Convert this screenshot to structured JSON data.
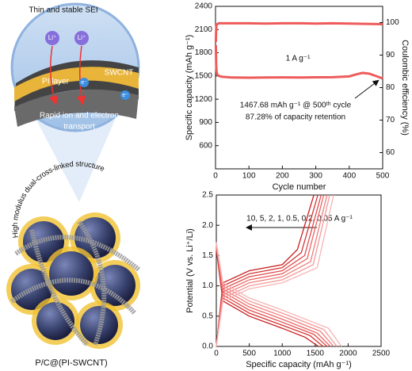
{
  "illustration": {
    "sei_label": "Thin and stable SEI",
    "ion_labels": [
      "Li⁺",
      "Li⁺"
    ],
    "swcnt_label": "SWCNT",
    "pi_label": "PI layer",
    "electron_labels": [
      "e⁻",
      "e⁻"
    ],
    "transport_label": [
      "Rapid ion and electron",
      "transport"
    ],
    "structure_label": "High modulus dual-cross-linked structure",
    "material_label": "P/C@(PI-SWCNT)"
  },
  "chart_data": [
    {
      "type": "line",
      "xlabel": "Cycle number",
      "ylabel": "Specific capacity (mAh g⁻¹)",
      "y2label": "Coulombic efficiency (%)",
      "annotations": [
        "1 A g⁻¹",
        "1467.68 mAh g⁻¹ @ 500ᵗʰ cycle",
        "87.28% of capacity retention"
      ],
      "xlim": [
        0,
        500
      ],
      "xticks": [
        0,
        100,
        200,
        300,
        400,
        500
      ],
      "ylim": [
        300,
        2400
      ],
      "yticks": [
        600,
        900,
        1200,
        1500,
        1800,
        2100,
        2400
      ],
      "y2lim": [
        55,
        105
      ],
      "y2ticks": [
        60,
        70,
        80,
        90,
        100
      ],
      "series": [
        {
          "color": "#ee5b5b",
          "x": [
            1,
            2,
            3,
            5,
            10,
            20,
            50,
            100,
            150,
            200,
            250,
            300,
            350,
            400,
            420,
            440,
            460,
            480,
            500
          ],
          "values": [
            1900,
            1650,
            1560,
            1520,
            1500,
            1490,
            1480,
            1478,
            1480,
            1482,
            1480,
            1483,
            1485,
            1495,
            1520,
            1540,
            1530,
            1500,
            1468
          ]
        },
        {
          "color": "#ee5b5b",
          "axis": "y2",
          "x": [
            1,
            2,
            3,
            5,
            10,
            50,
            100,
            150,
            200,
            250,
            300,
            350,
            400,
            450,
            500
          ],
          "values": [
            94,
            98,
            99.2,
            99.5,
            99.8,
            99.8,
            99.8,
            99.7,
            99.8,
            99.8,
            99.7,
            99.8,
            99.7,
            99.6,
            99.5
          ]
        }
      ]
    },
    {
      "type": "line",
      "xlabel": "Specific capacity (mAh g⁻¹)",
      "ylabel": "Potential (V vs. Li⁺/Li)",
      "annotations": [
        "10, 5, 2, 1, 0.5, 0.2, 0.05 A g⁻¹"
      ],
      "xlim": [
        0,
        2500
      ],
      "xticks": [
        0,
        500,
        1000,
        1500,
        2000,
        2500
      ],
      "ylim": [
        0,
        2.5
      ],
      "yticks": [
        {
          "value": 0,
          "label": "0.0"
        },
        0.5,
        {
          "value": 1,
          "label": "1.0"
        },
        1.5,
        {
          "value": 2,
          "label": "2.0"
        },
        2.5
      ],
      "series": [
        {
          "color": "#c81e1e",
          "x": [
            0,
            100,
            500,
            1000,
            1350,
            1550,
            null,
            0,
            100,
            500,
            1000,
            1230,
            1480
          ],
          "values": [
            1.6,
            0.75,
            0.5,
            0.3,
            0.15,
            0,
            null,
            0,
            1.05,
            1.25,
            1.35,
            1.6,
            2.5
          ]
        },
        {
          "color": "#d53434",
          "x": [
            0,
            100,
            500,
            1000,
            1420,
            1620,
            null,
            0,
            100,
            500,
            1000,
            1290,
            1540
          ],
          "values": [
            1.62,
            0.8,
            0.55,
            0.35,
            0.18,
            0,
            null,
            0,
            1.0,
            1.2,
            1.3,
            1.55,
            2.5
          ]
        },
        {
          "color": "#e04c4c",
          "x": [
            0,
            100,
            500,
            1000,
            1480,
            1680,
            null,
            0,
            100,
            500,
            1000,
            1340,
            1590
          ],
          "values": [
            1.64,
            0.85,
            0.6,
            0.4,
            0.2,
            0,
            null,
            0,
            0.95,
            1.15,
            1.25,
            1.5,
            2.5
          ]
        },
        {
          "color": "#ea6464",
          "x": [
            0,
            100,
            500,
            1000,
            1530,
            1730,
            null,
            0,
            100,
            500,
            1000,
            1380,
            1630
          ],
          "values": [
            1.66,
            0.9,
            0.65,
            0.45,
            0.22,
            0,
            null,
            0,
            0.9,
            1.1,
            1.2,
            1.45,
            2.5
          ]
        },
        {
          "color": "#f07d7d",
          "x": [
            0,
            100,
            500,
            1000,
            1580,
            1780,
            null,
            0,
            100,
            500,
            1000,
            1430,
            1680
          ],
          "values": [
            1.68,
            0.95,
            0.7,
            0.5,
            0.25,
            0,
            null,
            0,
            0.85,
            1.05,
            1.15,
            1.4,
            2.5
          ]
        },
        {
          "color": "#f49797",
          "x": [
            0,
            100,
            500,
            1000,
            1630,
            1830,
            null,
            0,
            100,
            500,
            1000,
            1470,
            1720
          ],
          "values": [
            1.7,
            1.0,
            0.75,
            0.55,
            0.28,
            0,
            null,
            0,
            0.8,
            1.0,
            1.1,
            1.35,
            2.5
          ]
        },
        {
          "color": "#f8b3b3",
          "x": [
            0,
            100,
            500,
            1000,
            1700,
            1900,
            null,
            0,
            100,
            500,
            1000,
            1530,
            1780
          ],
          "values": [
            1.72,
            1.05,
            0.8,
            0.6,
            0.3,
            0,
            null,
            0,
            0.75,
            0.95,
            1.05,
            1.3,
            2.5
          ]
        }
      ]
    }
  ]
}
